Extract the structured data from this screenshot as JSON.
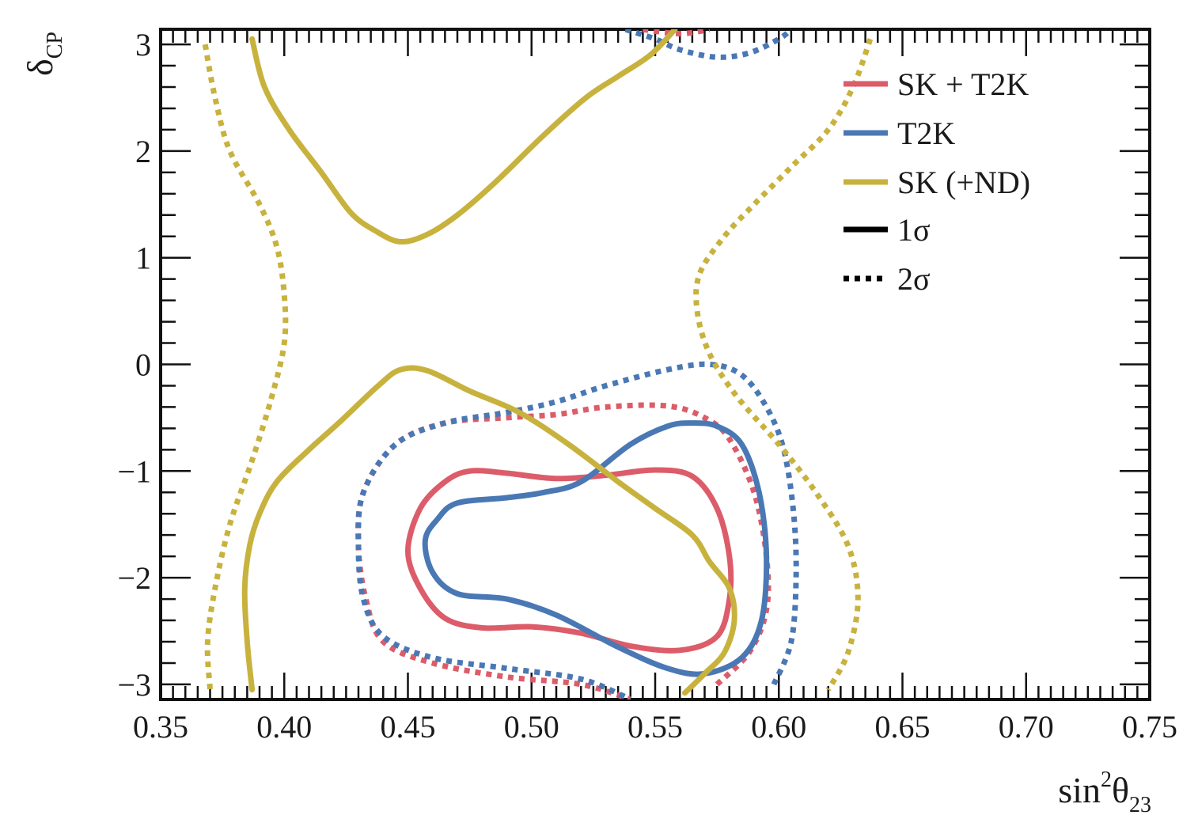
{
  "chart_data": {
    "type": "line",
    "xlabel": {
      "base": "sin",
      "sup": "2",
      "main": "θ",
      "sub": "23"
    },
    "ylabel": {
      "main": "δ",
      "sub": "CP"
    },
    "xlim": [
      0.35,
      0.75
    ],
    "ylim": [
      -3.1416,
      3.1416
    ],
    "xticks": [
      0.35,
      0.4,
      0.45,
      0.5,
      0.55,
      0.6,
      0.65,
      0.7,
      0.75
    ],
    "xtick_labels": [
      "0.35",
      "0.40",
      "0.45",
      "0.50",
      "0.55",
      "0.60",
      "0.65",
      "0.70",
      "0.75"
    ],
    "yticks": [
      -3,
      -2,
      -1,
      0,
      1,
      2,
      3
    ],
    "ytick_labels": [
      "−3",
      "−2",
      "−1",
      "0",
      "1",
      "2",
      "3"
    ],
    "legend_position": "top-right",
    "legend": [
      {
        "label": "SK + T2K",
        "color": "#dc5c6a",
        "style": "solid"
      },
      {
        "label": "T2K",
        "color": "#4a78b4",
        "style": "solid"
      },
      {
        "label": "SK (+ND)",
        "color": "#c8b23e",
        "style": "solid"
      },
      {
        "label": "1σ",
        "color": "#000000",
        "style": "solid"
      },
      {
        "label": "2σ",
        "color": "#000000",
        "style": "dotted"
      }
    ],
    "colors": {
      "sk_t2k": "#dc5c6a",
      "t2k": "#4a78b4",
      "sk": "#c8b23e"
    },
    "series": [
      {
        "name": "SK + T2K",
        "level": "1σ",
        "color": "#dc5c6a",
        "style": "solid",
        "closed": true,
        "points": [
          [
            0.475,
            -1.0
          ],
          [
            0.49,
            -1.02
          ],
          [
            0.51,
            -1.07
          ],
          [
            0.53,
            -1.04
          ],
          [
            0.55,
            -0.99
          ],
          [
            0.565,
            -1.05
          ],
          [
            0.575,
            -1.35
          ],
          [
            0.58,
            -1.8
          ],
          [
            0.58,
            -2.2
          ],
          [
            0.575,
            -2.55
          ],
          [
            0.56,
            -2.68
          ],
          [
            0.54,
            -2.64
          ],
          [
            0.52,
            -2.52
          ],
          [
            0.5,
            -2.46
          ],
          [
            0.48,
            -2.47
          ],
          [
            0.465,
            -2.38
          ],
          [
            0.455,
            -2.1
          ],
          [
            0.45,
            -1.75
          ],
          [
            0.455,
            -1.35
          ],
          [
            0.465,
            -1.1
          ],
          [
            0.475,
            -1.0
          ]
        ]
      },
      {
        "name": "T2K",
        "level": "1σ",
        "color": "#4a78b4",
        "style": "solid",
        "closed": true,
        "points": [
          [
            0.47,
            -1.3
          ],
          [
            0.49,
            -1.25
          ],
          [
            0.505,
            -1.2
          ],
          [
            0.52,
            -1.1
          ],
          [
            0.54,
            -0.75
          ],
          [
            0.555,
            -0.58
          ],
          [
            0.565,
            -0.55
          ],
          [
            0.575,
            -0.58
          ],
          [
            0.585,
            -0.75
          ],
          [
            0.592,
            -1.2
          ],
          [
            0.595,
            -1.8
          ],
          [
            0.593,
            -2.4
          ],
          [
            0.585,
            -2.75
          ],
          [
            0.57,
            -2.9
          ],
          [
            0.555,
            -2.85
          ],
          [
            0.535,
            -2.65
          ],
          [
            0.51,
            -2.35
          ],
          [
            0.49,
            -2.2
          ],
          [
            0.47,
            -2.15
          ],
          [
            0.46,
            -1.95
          ],
          [
            0.457,
            -1.65
          ],
          [
            0.462,
            -1.45
          ],
          [
            0.47,
            -1.3
          ]
        ]
      },
      {
        "name": "SK + T2K",
        "level": "2σ",
        "color": "#dc5c6a",
        "style": "dotted",
        "closed": false,
        "points": [
          [
            0.575,
            -3.0
          ],
          [
            0.588,
            -2.7
          ],
          [
            0.595,
            -2.3
          ],
          [
            0.595,
            -1.8
          ],
          [
            0.59,
            -1.2
          ],
          [
            0.58,
            -0.7
          ],
          [
            0.57,
            -0.5
          ],
          [
            0.555,
            -0.39
          ],
          [
            0.53,
            -0.4
          ],
          [
            0.51,
            -0.47
          ],
          [
            0.49,
            -0.5
          ],
          [
            0.465,
            -0.55
          ],
          [
            0.445,
            -0.75
          ],
          [
            0.432,
            -1.2
          ],
          [
            0.43,
            -1.7
          ],
          [
            0.433,
            -2.2
          ],
          [
            0.44,
            -2.6
          ],
          [
            0.46,
            -2.8
          ],
          [
            0.49,
            -2.93
          ],
          [
            0.52,
            -3.0
          ],
          [
            0.54,
            -3.14
          ]
        ]
      },
      {
        "name": "SK + T2K",
        "level": "2σ",
        "color": "#dc5c6a",
        "style": "dotted",
        "closed": false,
        "points": [
          [
            0.545,
            3.14
          ],
          [
            0.56,
            3.1
          ],
          [
            0.572,
            3.14
          ]
        ]
      },
      {
        "name": "T2K",
        "level": "2σ",
        "color": "#4a78b4",
        "style": "dotted",
        "closed": false,
        "points": [
          [
            0.598,
            -3.0
          ],
          [
            0.605,
            -2.6
          ],
          [
            0.607,
            -2.0
          ],
          [
            0.606,
            -1.4
          ],
          [
            0.602,
            -0.8
          ],
          [
            0.595,
            -0.4
          ],
          [
            0.585,
            -0.1
          ],
          [
            0.572,
            0.0
          ],
          [
            0.555,
            -0.05
          ],
          [
            0.53,
            -0.2
          ],
          [
            0.51,
            -0.35
          ],
          [
            0.49,
            -0.45
          ],
          [
            0.465,
            -0.55
          ],
          [
            0.445,
            -0.75
          ],
          [
            0.432,
            -1.2
          ],
          [
            0.43,
            -1.7
          ],
          [
            0.432,
            -2.2
          ],
          [
            0.44,
            -2.55
          ],
          [
            0.46,
            -2.75
          ],
          [
            0.49,
            -2.85
          ],
          [
            0.52,
            -2.95
          ],
          [
            0.54,
            -3.14
          ]
        ]
      },
      {
        "name": "T2K",
        "level": "2σ",
        "color": "#4a78b4",
        "style": "dotted",
        "closed": false,
        "points": [
          [
            0.538,
            3.14
          ],
          [
            0.55,
            3.05
          ],
          [
            0.56,
            2.95
          ],
          [
            0.575,
            2.88
          ],
          [
            0.588,
            2.92
          ],
          [
            0.6,
            3.05
          ],
          [
            0.605,
            3.14
          ]
        ]
      },
      {
        "name": "SK (+ND)",
        "level": "1σ",
        "color": "#c8b23e",
        "style": "solid",
        "closed": false,
        "points": [
          [
            0.387,
            3.05
          ],
          [
            0.392,
            2.6
          ],
          [
            0.402,
            2.2
          ],
          [
            0.415,
            1.8
          ],
          [
            0.427,
            1.42
          ],
          [
            0.437,
            1.25
          ],
          [
            0.447,
            1.15
          ],
          [
            0.458,
            1.22
          ],
          [
            0.47,
            1.4
          ],
          [
            0.485,
            1.7
          ],
          [
            0.505,
            2.15
          ],
          [
            0.522,
            2.5
          ],
          [
            0.535,
            2.7
          ],
          [
            0.548,
            2.9
          ],
          [
            0.558,
            3.14
          ]
        ]
      },
      {
        "name": "SK (+ND)",
        "level": "1σ",
        "color": "#c8b23e",
        "style": "solid",
        "closed": false,
        "points": [
          [
            0.387,
            -3.05
          ],
          [
            0.385,
            -2.6
          ],
          [
            0.384,
            -2.1
          ],
          [
            0.386,
            -1.7
          ],
          [
            0.39,
            -1.4
          ],
          [
            0.397,
            -1.1
          ],
          [
            0.41,
            -0.8
          ],
          [
            0.422,
            -0.55
          ],
          [
            0.438,
            -0.2
          ],
          [
            0.447,
            -0.05
          ],
          [
            0.458,
            -0.06
          ],
          [
            0.475,
            -0.25
          ],
          [
            0.495,
            -0.45
          ],
          [
            0.515,
            -0.75
          ],
          [
            0.535,
            -1.1
          ],
          [
            0.55,
            -1.35
          ],
          [
            0.565,
            -1.6
          ],
          [
            0.572,
            -1.85
          ],
          [
            0.58,
            -2.1
          ],
          [
            0.582,
            -2.4
          ],
          [
            0.578,
            -2.7
          ],
          [
            0.57,
            -2.9
          ],
          [
            0.562,
            -3.08
          ]
        ]
      },
      {
        "name": "SK (+ND)",
        "level": "2σ",
        "color": "#c8b23e",
        "style": "dotted",
        "closed": false,
        "points": [
          [
            0.368,
            3.0
          ],
          [
            0.372,
            2.5
          ],
          [
            0.378,
            2.0
          ],
          [
            0.39,
            1.5
          ],
          [
            0.397,
            1.1
          ],
          [
            0.4,
            0.65
          ],
          [
            0.4,
            0.2
          ],
          [
            0.395,
            -0.3
          ],
          [
            0.387,
            -0.9
          ],
          [
            0.378,
            -1.5
          ],
          [
            0.372,
            -2.1
          ],
          [
            0.369,
            -2.6
          ],
          [
            0.37,
            -3.05
          ]
        ]
      },
      {
        "name": "SK (+ND)",
        "level": "2σ",
        "color": "#c8b23e",
        "style": "dotted",
        "closed": false,
        "points": [
          [
            0.637,
            3.05
          ],
          [
            0.63,
            2.6
          ],
          [
            0.62,
            2.2
          ],
          [
            0.605,
            1.85
          ],
          [
            0.59,
            1.5
          ],
          [
            0.578,
            1.2
          ],
          [
            0.568,
            0.85
          ],
          [
            0.567,
            0.5
          ],
          [
            0.572,
            0.1
          ],
          [
            0.583,
            -0.3
          ],
          [
            0.6,
            -0.75
          ],
          [
            0.615,
            -1.2
          ],
          [
            0.628,
            -1.7
          ],
          [
            0.632,
            -2.2
          ],
          [
            0.628,
            -2.7
          ],
          [
            0.62,
            -3.05
          ]
        ]
      }
    ]
  }
}
